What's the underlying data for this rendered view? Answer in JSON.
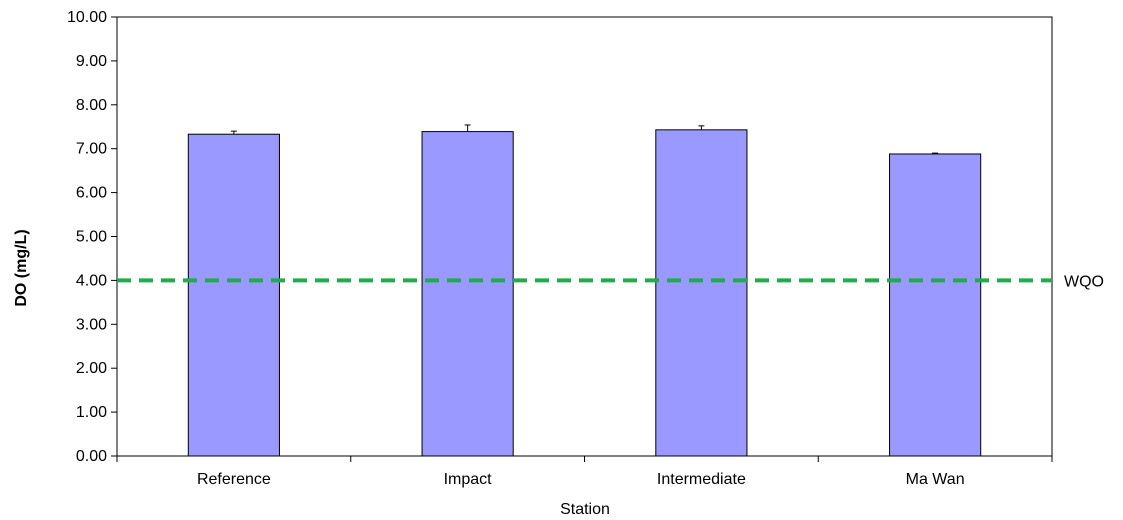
{
  "chart_data": {
    "type": "bar",
    "title": "",
    "xlabel": "Station",
    "ylabel": "DO (mg/L)",
    "categories": [
      "Reference",
      "Impact",
      "Intermediate",
      "Ma Wan"
    ],
    "values": [
      7.33,
      7.39,
      7.43,
      6.88
    ],
    "error_high": [
      7.4,
      7.54,
      7.52,
      6.9
    ],
    "ylim": [
      0,
      10
    ],
    "y_tick_labels": [
      "0.00",
      "1.00",
      "2.00",
      "3.00",
      "4.00",
      "5.00",
      "6.00",
      "7.00",
      "8.00",
      "9.00",
      "10.00"
    ],
    "grid": false,
    "reference_line": {
      "label": "WQO",
      "value": 4.0,
      "color": "#1fac4b",
      "style": "dashed"
    },
    "bar_color": "#9999ff",
    "bar_edge_color": "#000000"
  }
}
